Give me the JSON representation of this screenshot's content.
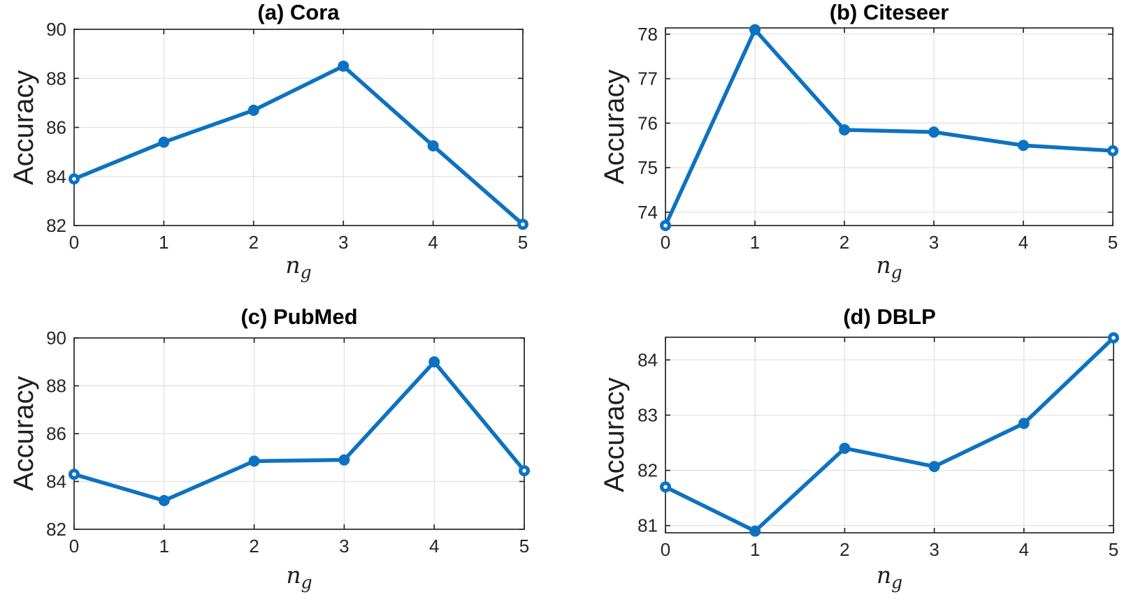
{
  "figure": {
    "background": "#ffffff"
  },
  "styles": {
    "line_color": "#0d72c1",
    "marker_hole_color": "#ffffff",
    "axis_color": "#262626",
    "grid_color": "#e0e0e0",
    "title_color": "#000000",
    "label_color": "#1f1f1f"
  },
  "chart_data": [
    {
      "type": "line",
      "title": "(a) Cora",
      "ylabel": "Accuracy",
      "xlabel_main": "n",
      "xlabel_sub": "g",
      "x": [
        0,
        1,
        2,
        3,
        4,
        5
      ],
      "values": [
        83.9,
        85.4,
        86.7,
        88.5,
        85.25,
        82.05
      ],
      "xlim": [
        0,
        5
      ],
      "ylim": [
        82,
        90
      ],
      "xticks": [
        0,
        1,
        2,
        3,
        4,
        5
      ],
      "yticks": [
        82,
        84,
        86,
        88,
        90
      ],
      "grid": true,
      "legend": "none"
    },
    {
      "type": "line",
      "title": "(b) Citeseer",
      "ylabel": "Accuracy",
      "xlabel_main": "n",
      "xlabel_sub": "g",
      "x": [
        0,
        1,
        2,
        3,
        4,
        5
      ],
      "values": [
        73.7,
        78.1,
        75.85,
        75.8,
        75.5,
        75.38
      ],
      "xlim": [
        0,
        5
      ],
      "ylim": [
        73.7,
        78.14
      ],
      "xticks": [
        0,
        1,
        2,
        3,
        4,
        5
      ],
      "yticks": [
        74,
        75,
        76,
        77,
        78
      ],
      "grid": true,
      "legend": "none"
    },
    {
      "type": "line",
      "title": "(c) PubMed",
      "ylabel": "Accuracy",
      "xlabel_main": "n",
      "xlabel_sub": "g",
      "x": [
        0,
        1,
        2,
        3,
        4,
        5
      ],
      "values": [
        84.3,
        83.2,
        84.85,
        84.9,
        89.0,
        84.45
      ],
      "xlim": [
        0,
        5
      ],
      "ylim": [
        82,
        90
      ],
      "xticks": [
        0,
        1,
        2,
        3,
        4,
        5
      ],
      "yticks": [
        82,
        84,
        86,
        88,
        90
      ],
      "grid": true,
      "legend": "none"
    },
    {
      "type": "line",
      "title": "(d) DBLP",
      "ylabel": "Accuracy",
      "xlabel_main": "n",
      "xlabel_sub": "g",
      "x": [
        0,
        1,
        2,
        3,
        4,
        5
      ],
      "values": [
        81.7,
        80.9,
        82.4,
        82.07,
        82.85,
        84.4
      ],
      "xlim": [
        0,
        5
      ],
      "ylim": [
        80.87,
        84.41
      ],
      "xticks": [
        0,
        1,
        2,
        3,
        4,
        5
      ],
      "yticks": [
        81,
        82,
        83,
        84
      ],
      "grid": true,
      "legend": "none"
    }
  ]
}
